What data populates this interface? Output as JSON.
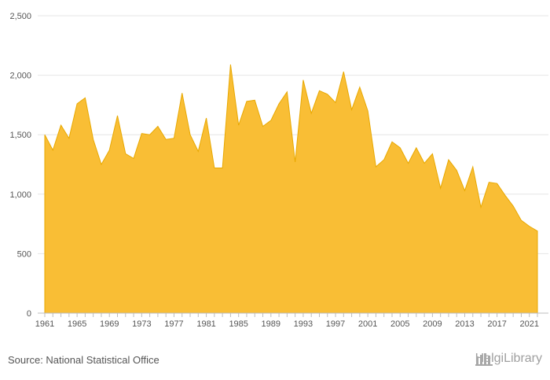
{
  "chart_data": {
    "type": "area",
    "title": "",
    "xlabel": "",
    "ylabel": "",
    "ylim": [
      0,
      2500
    ],
    "y_ticks": [
      0,
      500,
      1000,
      1500,
      2000,
      2500
    ],
    "x_ticks": [
      1961,
      1965,
      1969,
      1973,
      1977,
      1981,
      1985,
      1989,
      1993,
      1997,
      2001,
      2005,
      2009,
      2013,
      2017,
      2021
    ],
    "grid": true,
    "fill_color": "#f9be35",
    "line_color": "#e8a800",
    "x": [
      1961,
      1962,
      1963,
      1964,
      1965,
      1966,
      1967,
      1968,
      1969,
      1970,
      1971,
      1972,
      1973,
      1974,
      1975,
      1976,
      1977,
      1978,
      1979,
      1980,
      1981,
      1982,
      1983,
      1984,
      1985,
      1986,
      1987,
      1988,
      1989,
      1990,
      1991,
      1992,
      1993,
      1994,
      1995,
      1996,
      1997,
      1998,
      1999,
      2000,
      2001,
      2002,
      2003,
      2004,
      2005,
      2006,
      2007,
      2008,
      2009,
      2010,
      2011,
      2012,
      2013,
      2014,
      2015,
      2016,
      2017,
      2018,
      2019,
      2020,
      2021,
      2022
    ],
    "values": [
      1500,
      1370,
      1580,
      1470,
      1760,
      1810,
      1460,
      1250,
      1370,
      1660,
      1340,
      1300,
      1510,
      1500,
      1570,
      1460,
      1470,
      1850,
      1500,
      1360,
      1640,
      1220,
      1220,
      2090,
      1580,
      1780,
      1790,
      1570,
      1620,
      1760,
      1860,
      1270,
      1960,
      1680,
      1870,
      1840,
      1770,
      2030,
      1710,
      1900,
      1700,
      1230,
      1290,
      1440,
      1390,
      1260,
      1390,
      1260,
      1340,
      1050,
      1290,
      1200,
      1030,
      1230,
      890,
      1100,
      1090,
      990,
      900,
      780,
      730,
      690
    ]
  },
  "footer": {
    "source": "Source: National Statistical Office",
    "logo_text": "HelgiLibrary"
  }
}
